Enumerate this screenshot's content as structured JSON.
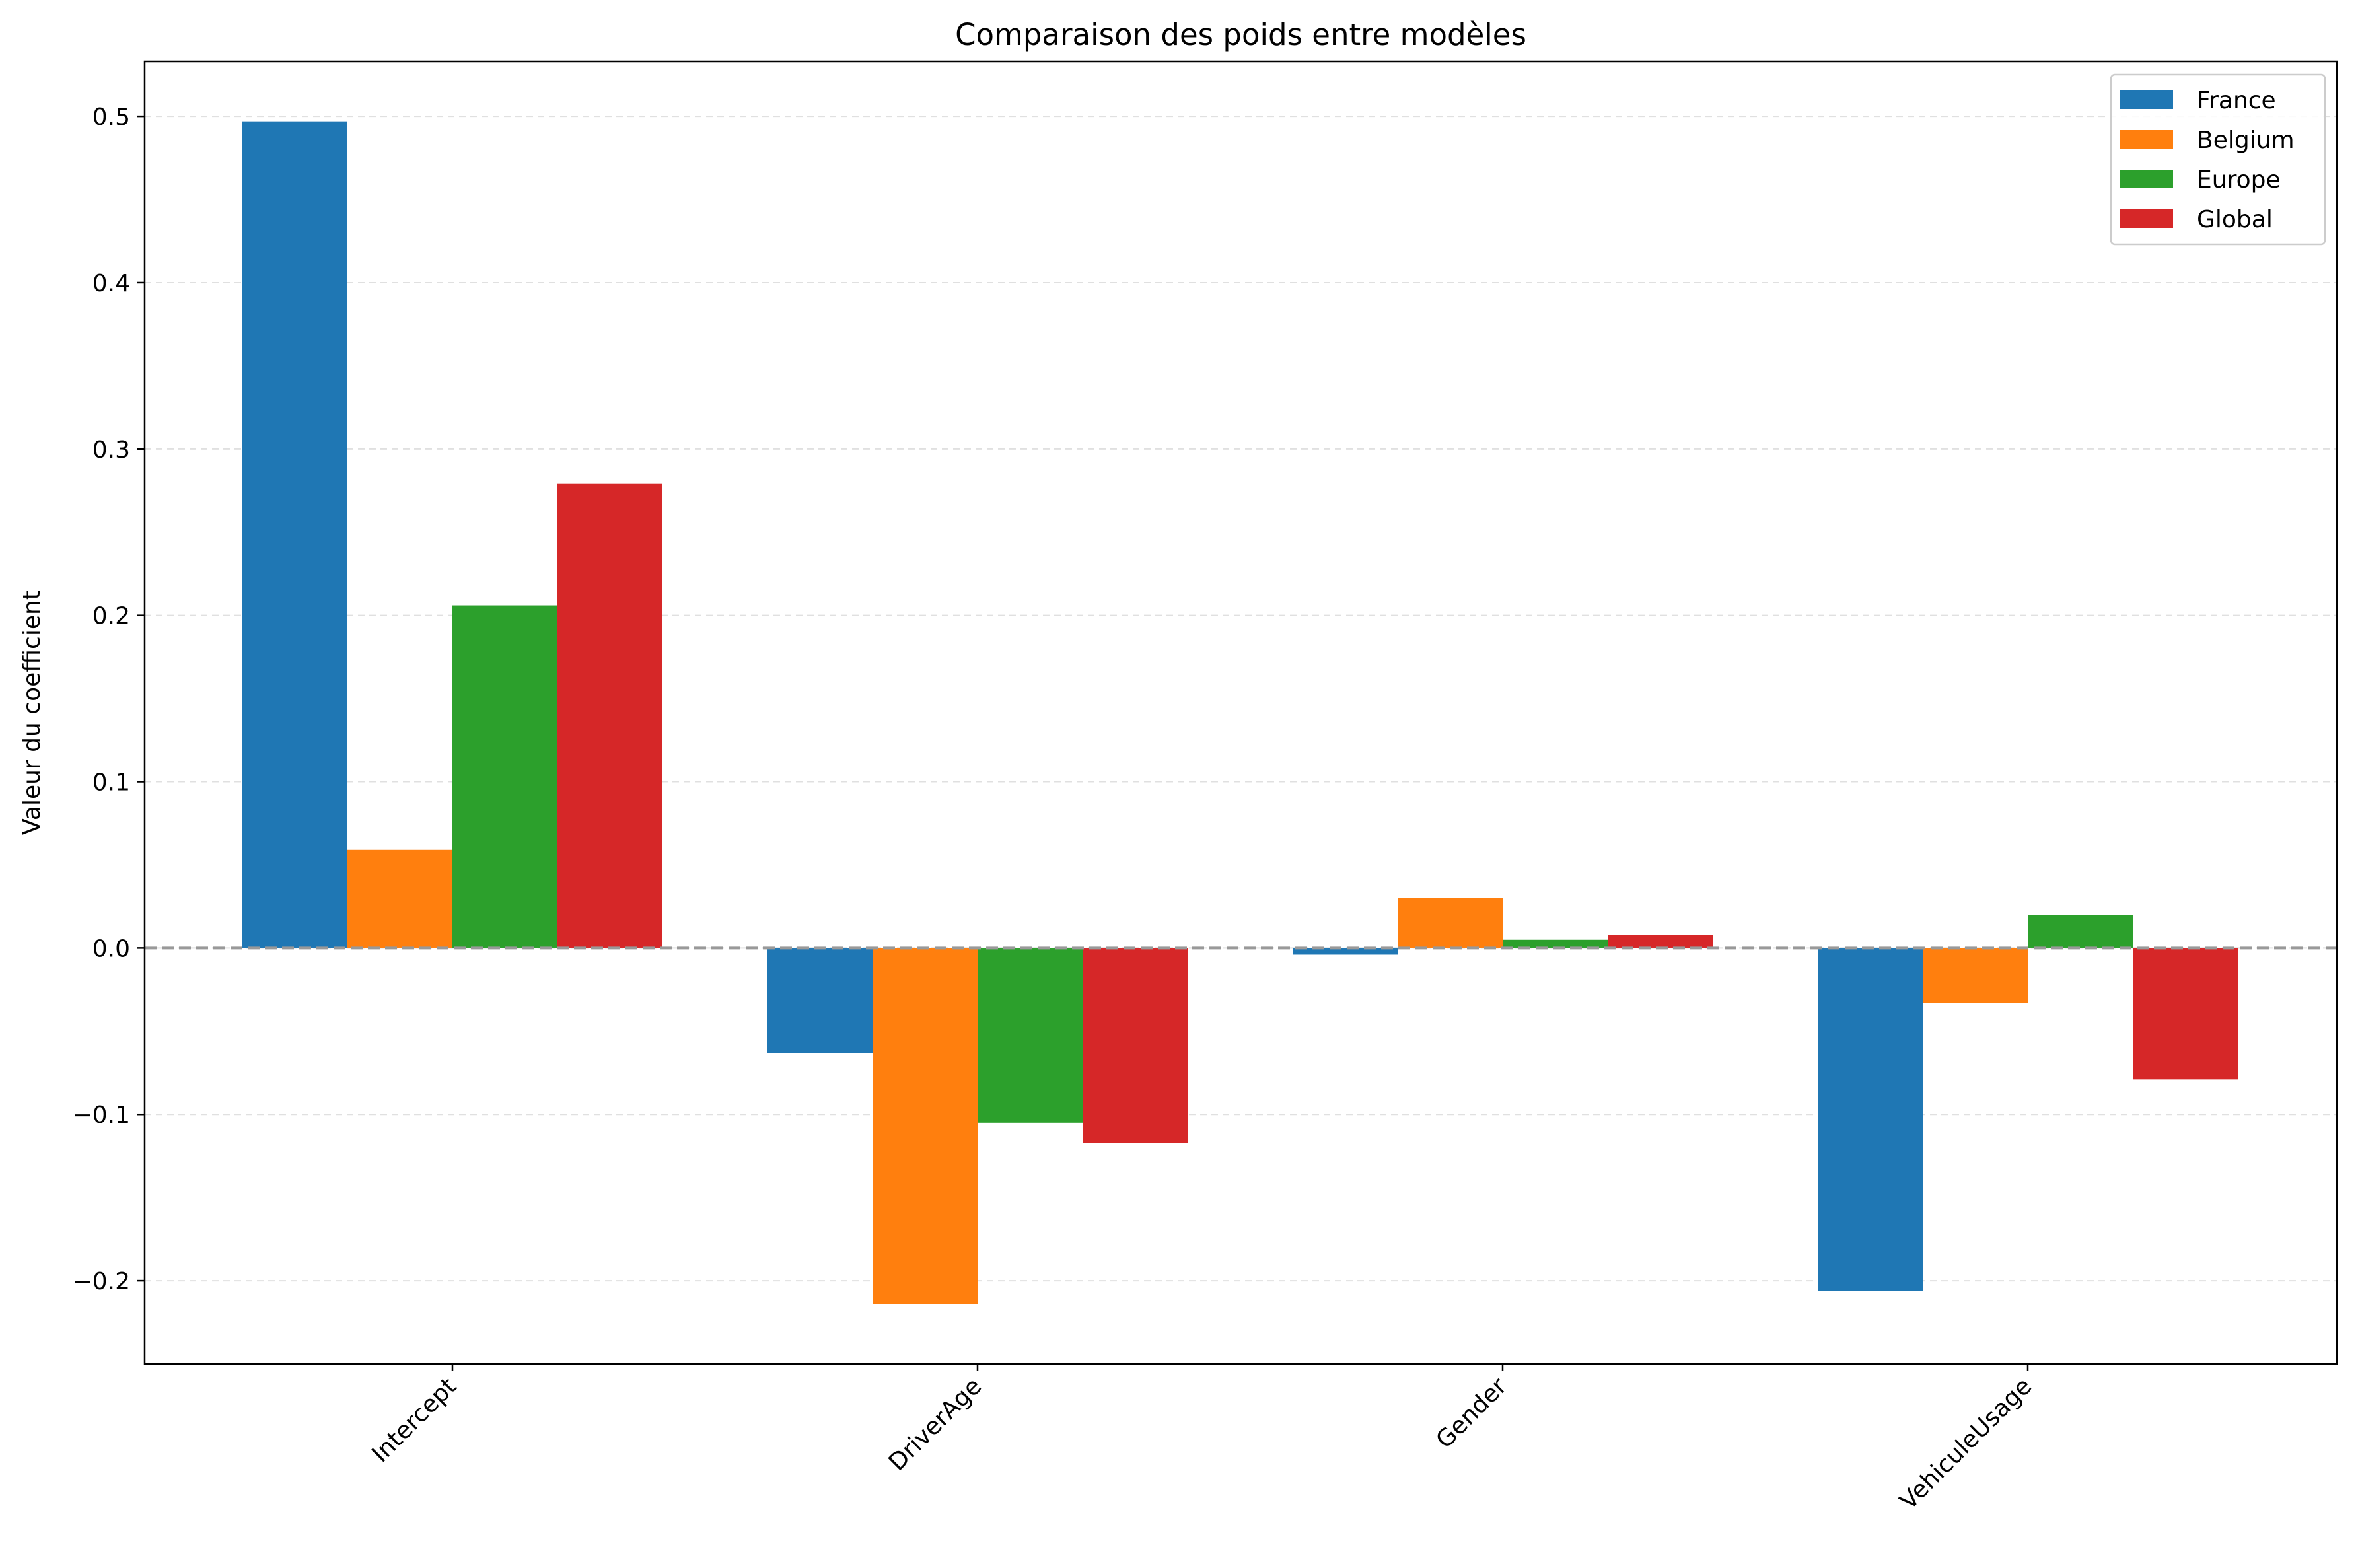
{
  "chart_data": {
    "type": "bar",
    "title": "Comparaison des poids entre modèles",
    "xlabel": "",
    "ylabel": "Valeur du coefficient",
    "categories": [
      "Intercept",
      "DriverAge",
      "Gender",
      "VehiculeUsage"
    ],
    "series": [
      {
        "name": "France",
        "color": "#1f77b4",
        "values": [
          0.497,
          -0.063,
          -0.004,
          -0.206
        ]
      },
      {
        "name": "Belgium",
        "color": "#ff7f0e",
        "values": [
          0.059,
          -0.214,
          0.03,
          -0.033
        ]
      },
      {
        "name": "Europe",
        "color": "#2ca02c",
        "values": [
          0.206,
          -0.105,
          0.005,
          0.02
        ]
      },
      {
        "name": "Global",
        "color": "#d62728",
        "values": [
          0.279,
          -0.117,
          0.008,
          -0.079
        ]
      }
    ],
    "ylim": [
      -0.25,
      0.533
    ],
    "yticks": [
      -0.2,
      -0.1,
      0.0,
      0.1,
      0.2,
      0.3,
      0.4,
      0.5
    ],
    "ytick_labels": [
      "−0.2",
      "−0.1",
      "0.0",
      "0.1",
      "0.2",
      "0.3",
      "0.4",
      "0.5"
    ],
    "grid": {
      "axis": "y",
      "style": "dashed",
      "color": "#e0e0e0"
    },
    "reference_line": {
      "y": 0.0,
      "style": "dashed",
      "color": "#999999"
    },
    "legend": {
      "placement": "top-right"
    },
    "xtick_rotation": 45
  }
}
